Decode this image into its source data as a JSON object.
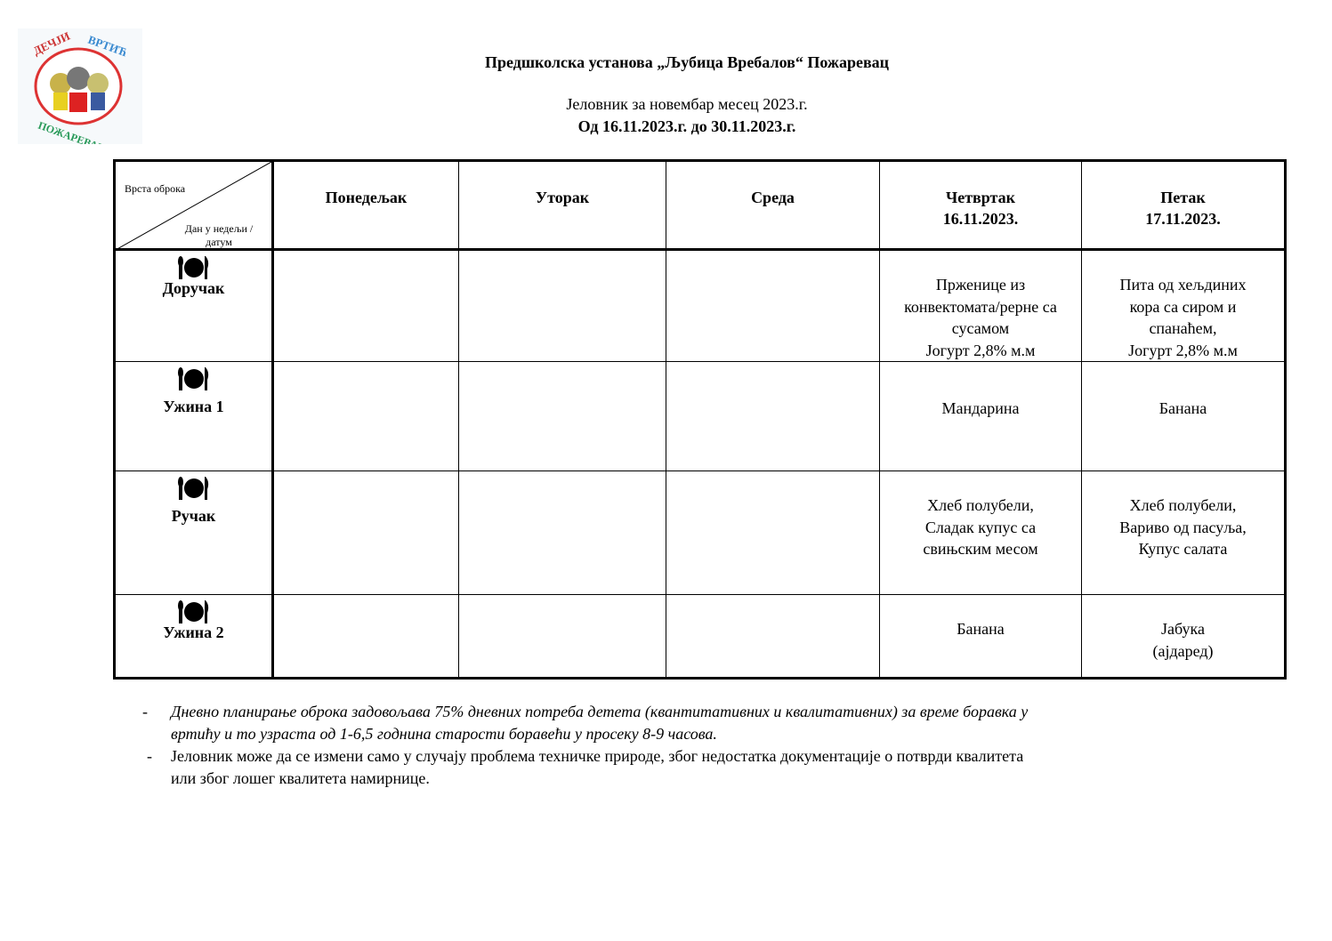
{
  "logo": {
    "text_top": "ДЕЧЈИ ВРТИЋ",
    "text_bottom": "ПОЖАРЕВАЦ"
  },
  "header": {
    "institution": "Предшколска установа „Љубица Вребалов“ Пожаревац",
    "menu_title": "Јеловник за новембар месец 2023.г.",
    "period": "Од 16.11.2023.г. до 30.11.2023.г."
  },
  "table": {
    "corner": {
      "top": "Врста оброка",
      "bottom": "Дан у недељи / датум"
    },
    "days": [
      {
        "name": "Понедељак",
        "date": ""
      },
      {
        "name": "Уторак",
        "date": ""
      },
      {
        "name": "Среда",
        "date": ""
      },
      {
        "name": "Четвртак",
        "date": "16.11.2023."
      },
      {
        "name": "Петак",
        "date": "17.11.2023."
      }
    ],
    "meals": [
      {
        "name": "Доручак",
        "icon": "plate-cutlery-icon",
        "cells": [
          "",
          "",
          "",
          [
            "Прженице из",
            "конвектомата/рерне са",
            "сусамом",
            "Јогурт 2,8% м.м"
          ],
          [
            "Пита од хељдиних",
            "кора са сиром и",
            "спанаћем,",
            "Јогурт 2,8% м.м"
          ]
        ]
      },
      {
        "name": "Ужина 1",
        "icon": "plate-cutlery-icon",
        "cells": [
          "",
          "",
          "",
          [
            "Мандарина"
          ],
          [
            "Банана"
          ]
        ]
      },
      {
        "name": "Ручак",
        "icon": "plate-cutlery-icon",
        "cells": [
          "",
          "",
          "",
          [
            "Хлеб полубели,",
            "Сладак купус са",
            "свињским месом"
          ],
          [
            "Хлеб полубели,",
            "Вариво од пасуља,",
            "Купус салата"
          ]
        ]
      },
      {
        "name": "Ужина 2",
        "icon": "plate-cutlery-icon",
        "cells": [
          "",
          "",
          "",
          [
            "Банана"
          ],
          [
            "Јабука",
            "(ајдаред)"
          ]
        ]
      }
    ]
  },
  "notes": [
    {
      "dash": "-",
      "lines": [
        "Дневно планирање оброка задовољава 75% дневних потреба  детета (квантитативних и квалитативних) за време боравка у",
        "вртићу и то узраста од 1-6,5 годнина старости боравећи у просеку 8-9 часова."
      ]
    },
    {
      "dash": "-",
      "lines": [
        "Јеловник може да се измени само у случају проблема техничке природе, због недостатка документације о потврди квалитета",
        "или због лошег квалитета намирнице."
      ]
    }
  ]
}
